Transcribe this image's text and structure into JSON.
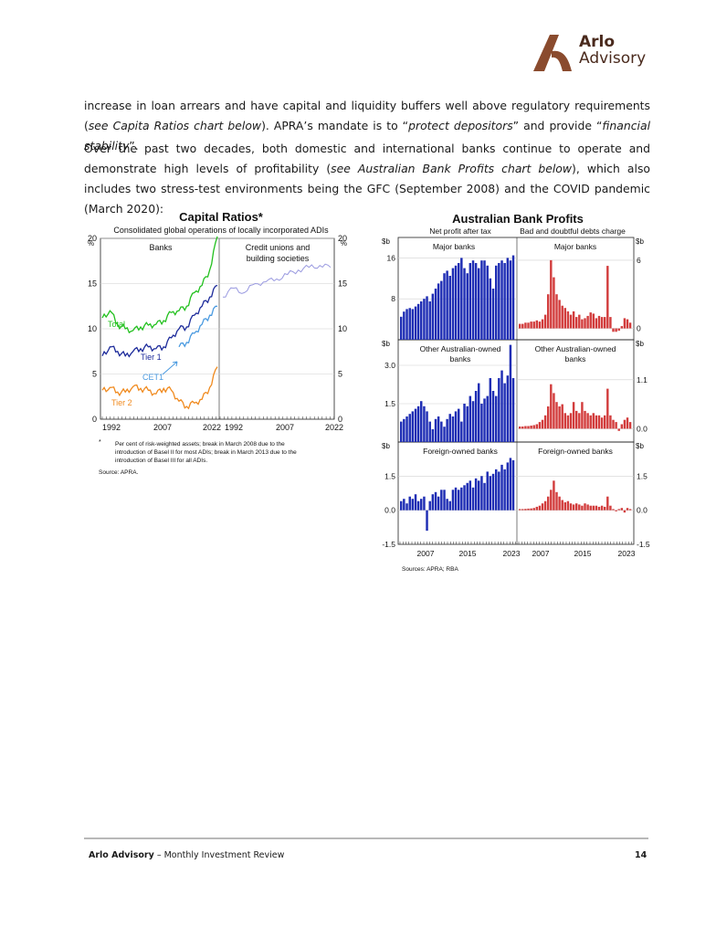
{
  "brand": {
    "name_line1": "Arlo",
    "name_line2": "Advisory",
    "color": "#8a4b2e"
  },
  "paragraphs": {
    "p1_a": "increase in loan arrears and have capital and liquidity buffers well above regulatory requirements (",
    "p1_b": "see Capita Ratios chart below",
    "p1_c": "). APRA’s mandate is to “",
    "p1_d": "protect depositors",
    "p1_e": "” and provide “",
    "p1_f": "financial stability",
    "p1_g": "”.",
    "p2_a": "Over the past two decades, both domestic and international banks continue to operate and demonstrate high levels of profitability (",
    "p2_b": "see Australian Bank Profits chart below",
    "p2_c": "), which also  includes two stress-test environments being the GFC (September 2008) and the COVID pandemic (March 2020):"
  },
  "capital_chart": {
    "title": "Capital Ratios*",
    "subtitle": "Consolidated global operations of locally incorporated ADIs",
    "unit_left": "%",
    "unit_right": "%",
    "panel_left": "Banks",
    "panel_right_l1": "Credit unions and",
    "panel_right_l2": "building societies",
    "y_ticks": [
      "0",
      "5",
      "10",
      "15",
      "20"
    ],
    "x_ticks_left": [
      "1992",
      "2007",
      "2022"
    ],
    "x_ticks_right": [
      "1992",
      "2007",
      "2022"
    ],
    "label_total": "Total",
    "label_tier1": "Tier 1",
    "label_cet1": "CET1",
    "label_tier2": "Tier 2",
    "note_marker": "*",
    "note_l1": "Per cent of risk-weighted assets; break in March 2008 due to the",
    "note_l2": "introduction of Basel II for most ADIs; break in March 2013 due to the",
    "note_l3": "introduction of Basel III for all ADIs.",
    "source": "Source:   APRA.",
    "colors": {
      "total": "#22c01e",
      "tier1": "#1c2a9a",
      "cet1": "#4a9ae0",
      "tier2": "#f08a1e",
      "credit_unions": "#9a9ae0"
    }
  },
  "profits_chart": {
    "title": "Australian Bank Profits",
    "col_left": "Net profit after tax",
    "col_right": "Bad and doubtful debts charge",
    "unit": "$b",
    "panel1_label": "Major banks",
    "panel2_label_l1": "Other Australian-owned",
    "panel2_label_l2": "banks",
    "panel3_label": "Foreign-owned banks",
    "left_ticks_p1": [
      "16",
      "8"
    ],
    "right_ticks_p1": [
      "6",
      "0"
    ],
    "left_ticks_p2": [
      "3.0",
      "1.5"
    ],
    "right_ticks_p2": [
      "1.1",
      "0.0"
    ],
    "left_ticks_p3": [
      "1.5",
      "0.0",
      "-1.5"
    ],
    "right_ticks_p3": [
      "1.5",
      "0.0",
      "-1.5"
    ],
    "x_ticks": [
      "2007",
      "2015",
      "2023"
    ],
    "source": "Sources: APRA; RBA",
    "colors": {
      "profit": "#1e2db4",
      "charge": "#d23c3c"
    }
  },
  "chart_data": [
    {
      "type": "line",
      "title": "Capital Ratios*",
      "panel": "Banks",
      "ylim": [
        0,
        20
      ],
      "x": [
        1992,
        1994,
        1996,
        1998,
        2000,
        2002,
        2004,
        2006,
        2008,
        2010,
        2012,
        2014,
        2016,
        2018,
        2020,
        2022
      ],
      "series": [
        {
          "name": "Total",
          "values": [
            11.2,
            12.0,
            10.5,
            10.0,
            9.8,
            10.2,
            10.4,
            10.5,
            10.9,
            11.8,
            12.0,
            12.5,
            14.0,
            14.8,
            16.5,
            20.2
          ]
        },
        {
          "name": "Tier 1",
          "values": [
            7.0,
            8.0,
            7.5,
            7.0,
            7.5,
            7.8,
            8.0,
            7.8,
            8.0,
            9.0,
            10.0,
            10.2,
            11.5,
            12.5,
            13.5,
            14.8
          ]
        },
        {
          "name": "CET1",
          "values": [
            null,
            null,
            null,
            null,
            null,
            null,
            null,
            null,
            null,
            null,
            8.0,
            8.5,
            9.5,
            10.5,
            11.5,
            12.5
          ]
        },
        {
          "name": "Tier 2",
          "values": [
            3.2,
            3.5,
            3.0,
            3.0,
            3.6,
            3.4,
            3.2,
            2.8,
            3.4,
            3.2,
            2.0,
            1.4,
            1.8,
            2.2,
            3.5,
            5.8
          ]
        }
      ]
    },
    {
      "type": "line",
      "title": "Capital Ratios*",
      "panel": "Credit unions and building societies",
      "ylim": [
        0,
        20
      ],
      "x": [
        1992,
        1995,
        1998,
        2001,
        2004,
        2007,
        2010,
        2013,
        2016,
        2019,
        2022
      ],
      "series": [
        {
          "values": [
            13.5,
            14.5,
            14.0,
            15.0,
            15.2,
            15.5,
            16.0,
            16.5,
            16.8,
            17.0,
            16.8
          ]
        }
      ]
    },
    {
      "type": "bar",
      "title": "Australian Bank Profits",
      "panel": "Major banks",
      "series": [
        {
          "name": "Net profit after tax",
          "values": [
            4.5,
            5.5,
            6,
            6.2,
            6,
            6.5,
            7,
            7.5,
            8,
            8.5,
            7.5,
            9,
            10,
            11,
            11.5,
            13,
            13.5,
            12.5,
            14,
            14.5,
            15,
            16,
            14,
            13,
            15,
            15.5,
            15,
            14,
            15.5,
            15.5,
            14.5,
            12,
            10,
            14.5,
            15,
            15.5,
            15,
            16,
            15.5,
            16.5
          ]
        },
        {
          "name": "Bad and doubtful debts charge",
          "values": [
            0.4,
            0.4,
            0.5,
            0.5,
            0.6,
            0.6,
            0.7,
            0.6,
            0.8,
            1.2,
            3.0,
            6.0,
            4.5,
            3.0,
            2.5,
            2.0,
            1.8,
            1.5,
            1.2,
            1.5,
            1.0,
            1.2,
            0.8,
            0.9,
            1.1,
            1.4,
            1.3,
            0.9,
            1.1,
            1.0,
            1.0,
            5.5,
            1.0,
            -0.3,
            -0.3,
            -0.2,
            0.2,
            0.9,
            0.8,
            0.5
          ]
        }
      ]
    },
    {
      "type": "bar",
      "title": "Australian Bank Profits",
      "panel": "Other Australian-owned banks",
      "series": [
        {
          "name": "Net profit after tax",
          "values": [
            0.8,
            0.9,
            1.0,
            1.1,
            1.2,
            1.3,
            1.4,
            1.6,
            1.4,
            1.2,
            0.8,
            0.5,
            0.9,
            1.0,
            0.8,
            0.6,
            0.9,
            1.1,
            1.0,
            1.2,
            1.3,
            0.8,
            1.5,
            1.4,
            1.8,
            1.6,
            2.0,
            2.3,
            1.5,
            1.7,
            1.8,
            2.5,
            2.0,
            1.8,
            2.5,
            2.8,
            2.3,
            2.6,
            3.8,
            2.5
          ]
        },
        {
          "name": "Bad and doubtful debts charge",
          "values": [
            0.05,
            0.05,
            0.06,
            0.06,
            0.07,
            0.08,
            0.1,
            0.15,
            0.2,
            0.3,
            0.5,
            1.0,
            0.8,
            0.6,
            0.5,
            0.55,
            0.35,
            0.3,
            0.35,
            0.6,
            0.4,
            0.35,
            0.6,
            0.4,
            0.35,
            0.3,
            0.35,
            0.3,
            0.3,
            0.25,
            0.3,
            0.9,
            0.3,
            0.2,
            0.15,
            -0.05,
            0.1,
            0.2,
            0.25,
            0.15
          ]
        }
      ]
    },
    {
      "type": "bar",
      "title": "Australian Bank Profits",
      "panel": "Foreign-owned banks",
      "series": [
        {
          "name": "Net profit after tax",
          "values": [
            0.4,
            0.5,
            0.3,
            0.6,
            0.5,
            0.7,
            0.4,
            0.5,
            0.6,
            -0.9,
            0.4,
            0.7,
            0.8,
            0.6,
            0.9,
            0.9,
            0.5,
            0.4,
            0.9,
            1.0,
            0.9,
            1.0,
            1.1,
            1.2,
            1.3,
            1.0,
            1.4,
            1.3,
            1.5,
            1.2,
            1.7,
            1.5,
            1.6,
            1.8,
            1.7,
            2.0,
            1.8,
            2.1,
            2.3,
            2.2
          ]
        },
        {
          "name": "Bad and doubtful debts charge",
          "values": [
            0.05,
            0.05,
            0.06,
            0.07,
            0.08,
            0.1,
            0.15,
            0.2,
            0.3,
            0.4,
            0.6,
            0.9,
            1.3,
            0.8,
            0.6,
            0.45,
            0.35,
            0.4,
            0.3,
            0.25,
            0.3,
            0.25,
            0.2,
            0.3,
            0.25,
            0.2,
            0.2,
            0.2,
            0.15,
            0.2,
            0.15,
            0.6,
            0.2,
            0.05,
            -0.05,
            0.05,
            0.1,
            -0.1,
            0.1,
            0.05
          ]
        }
      ]
    }
  ],
  "footer": {
    "brand": "Arlo Advisory",
    "rest": " – Monthly Investment Review",
    "page": "14"
  }
}
